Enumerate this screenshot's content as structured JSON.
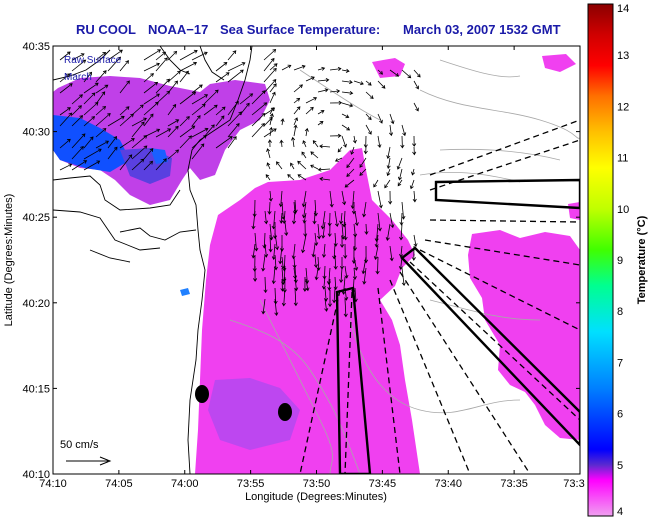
{
  "title": {
    "group": "RU COOL",
    "satellite": "NOAA−17",
    "product": "Sea Surface Temperature:",
    "datetime": "March 03, 2007 1532 GMT"
  },
  "overlay": {
    "line1": "Raw Surface",
    "line2": "March"
  },
  "axes": {
    "xlabel": "Longitude (Degrees:Minutes)",
    "ylabel": "Latitude (Degrees:Minutes)",
    "xticks": [
      "74:10",
      "74:05",
      "74:00",
      "73:55",
      "73:50",
      "73:45",
      "73:40",
      "73:35",
      "73:3"
    ],
    "yticks": [
      "40:35",
      "40:30",
      "40:25",
      "40:20",
      "40:15",
      "40:10"
    ]
  },
  "scale": {
    "label": "50 cm/s"
  },
  "colorbar": {
    "title": "Temperature (°C)",
    "min": 4,
    "max": 14,
    "ticks": [
      "14",
      "13",
      "12",
      "11",
      "10",
      "9",
      "8",
      "7",
      "6",
      "5",
      "4"
    ],
    "colors": [
      "#f0a0f0",
      "#ff00ff",
      "#5a2ad0",
      "#0000ff",
      "#0080ff",
      "#00e0ff",
      "#00ff90",
      "#40ff00",
      "#c0ff00",
      "#ffff00",
      "#ffc000",
      "#ff7000",
      "#ff0000",
      "#d00000",
      "#8b0000"
    ]
  },
  "colors": {
    "title": "#1a1aa8",
    "sst_main": "#f040f0",
    "sst_cool": "#1050ff",
    "sst_mid": "#9a40e0"
  }
}
